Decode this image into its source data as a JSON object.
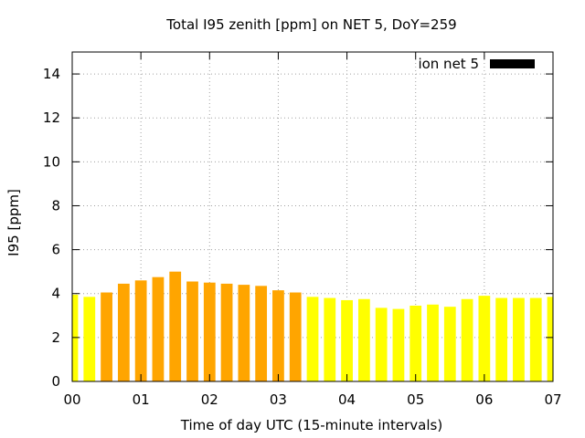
{
  "chart_data": {
    "type": "bar",
    "title": "Total I95 zenith [ppm] on NET 5, DoY=259",
    "xlabel": "Time of day UTC (15-minute intervals)",
    "ylabel": "I95 [ppm]",
    "xlim": [
      0,
      7
    ],
    "ylim": [
      0,
      15
    ],
    "x_ticks": [
      "00",
      "01",
      "02",
      "03",
      "04",
      "05",
      "06",
      "07"
    ],
    "y_ticks": [
      "0",
      "2",
      "4",
      "6",
      "8",
      "10",
      "12",
      "14"
    ],
    "grid": true,
    "legend_position": "top-right",
    "colors": {
      "orange": "#ffa500",
      "yellow": "#ffff00",
      "legend_key": "#000000",
      "grid": "#a0a0a0"
    },
    "series": [
      {
        "name": "ion net 5",
        "x": [
          0.0,
          0.25,
          0.5,
          0.75,
          1.0,
          1.25,
          1.5,
          1.75,
          2.0,
          2.25,
          2.5,
          2.75,
          3.0,
          3.25,
          3.5,
          3.75,
          4.0,
          4.25,
          4.5,
          4.75,
          5.0,
          5.25,
          5.5,
          5.75,
          6.0,
          6.25,
          6.5,
          6.75,
          7.0
        ],
        "values": [
          3.95,
          3.85,
          4.05,
          4.45,
          4.6,
          4.75,
          5.0,
          4.55,
          4.5,
          4.45,
          4.4,
          4.35,
          4.15,
          4.05,
          3.85,
          3.8,
          3.7,
          3.75,
          3.35,
          3.3,
          3.45,
          3.5,
          3.4,
          3.75,
          3.9,
          3.8,
          3.8,
          3.8,
          3.85
        ],
        "bar_colors": [
          "yellow",
          "yellow",
          "orange",
          "orange",
          "orange",
          "orange",
          "orange",
          "orange",
          "orange",
          "orange",
          "orange",
          "orange",
          "orange",
          "orange",
          "yellow",
          "yellow",
          "yellow",
          "yellow",
          "yellow",
          "yellow",
          "yellow",
          "yellow",
          "yellow",
          "yellow",
          "yellow",
          "yellow",
          "yellow",
          "yellow",
          "yellow"
        ]
      }
    ]
  }
}
